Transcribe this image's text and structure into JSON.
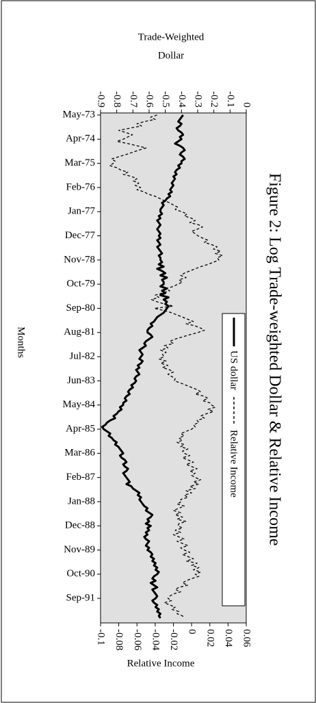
{
  "chart_data": {
    "type": "line",
    "title": "Figure 2: Log Trade-weighted Dollar & Relative Income",
    "x_label": "Months",
    "y_label": [
      "Trade-Weighted",
      "Dollar"
    ],
    "y2_label": "Relative Income",
    "categories": [
      "May-73",
      null,
      null,
      null,
      null,
      null,
      null,
      null,
      null,
      null,
      null,
      "Apr-74",
      null,
      null,
      null,
      null,
      null,
      null,
      null,
      null,
      null,
      null,
      "Mar-75",
      null,
      null,
      null,
      null,
      null,
      null,
      null,
      null,
      null,
      null,
      "Feb-76",
      null,
      null,
      null,
      null,
      null,
      null,
      null,
      null,
      null,
      null,
      "Jan-77",
      null,
      null,
      null,
      null,
      null,
      null,
      null,
      null,
      null,
      null,
      "Dec-77",
      null,
      null,
      null,
      null,
      null,
      null,
      null,
      null,
      null,
      null,
      "Nov-78",
      null,
      null,
      null,
      null,
      null,
      null,
      null,
      null,
      null,
      null,
      "Oct-79",
      null,
      null,
      null,
      null,
      null,
      null,
      null,
      null,
      null,
      null,
      "Sep-80",
      null,
      null,
      null,
      null,
      null,
      null,
      null,
      null,
      null,
      null,
      "Aug-81",
      null,
      null,
      null,
      null,
      null,
      null,
      null,
      null,
      null,
      null,
      "Jul-82",
      null,
      null,
      null,
      null,
      null,
      null,
      null,
      null,
      null,
      null,
      "Jun-83",
      null,
      null,
      null,
      null,
      null,
      null,
      null,
      null,
      null,
      null,
      "May-84",
      null,
      null,
      null,
      null,
      null,
      null,
      null,
      null,
      null,
      null,
      "Apr-85",
      null,
      null,
      null,
      null,
      null,
      null,
      null,
      null,
      null,
      null,
      "Mar-86",
      null,
      null,
      null,
      null,
      null,
      null,
      null,
      null,
      null,
      null,
      "Feb-87",
      null,
      null,
      null,
      null,
      null,
      null,
      null,
      null,
      null,
      null,
      "Jan-88",
      null,
      null,
      null,
      null,
      null,
      null,
      null,
      null,
      null,
      null,
      "Dec-88",
      null,
      null,
      null,
      null,
      null,
      null,
      null,
      null,
      null,
      null,
      "Nov-89",
      null,
      null,
      null,
      null,
      null,
      null,
      null,
      null,
      null,
      null,
      "Oct-90",
      null,
      null,
      null,
      null,
      null,
      null,
      null,
      null,
      null,
      null,
      "Sep-91",
      null,
      null,
      null,
      null,
      null,
      null,
      null,
      null,
      null
    ],
    "series": [
      {
        "name": "US dollar",
        "color": "#000000",
        "dash": "solid",
        "axis": "y",
        "values": [
          -0.39,
          -0.4,
          -0.41,
          -0.42,
          -0.4,
          -0.41,
          -0.43,
          -0.42,
          -0.4,
          -0.39,
          -0.41,
          -0.4,
          -0.42,
          -0.44,
          -0.41,
          -0.39,
          -0.38,
          -0.4,
          -0.41,
          -0.39,
          -0.38,
          -0.4,
          -0.4,
          -0.42,
          -0.41,
          -0.43,
          -0.44,
          -0.43,
          -0.45,
          -0.44,
          -0.45,
          -0.46,
          -0.45,
          -0.46,
          -0.47,
          -0.46,
          -0.48,
          -0.47,
          -0.49,
          -0.5,
          -0.52,
          -0.51,
          -0.52,
          -0.53,
          -0.53,
          -0.52,
          -0.54,
          -0.53,
          -0.55,
          -0.54,
          -0.53,
          -0.54,
          -0.55,
          -0.54,
          -0.53,
          -0.54,
          -0.53,
          -0.55,
          -0.54,
          -0.53,
          -0.55,
          -0.54,
          -0.53,
          -0.52,
          -0.54,
          -0.53,
          -0.53,
          -0.52,
          -0.54,
          -0.51,
          -0.55,
          -0.52,
          -0.5,
          -0.53,
          -0.49,
          -0.52,
          -0.51,
          -0.51,
          -0.53,
          -0.49,
          -0.52,
          -0.5,
          -0.53,
          -0.48,
          -0.51,
          -0.49,
          -0.5,
          -0.48,
          -0.49,
          -0.5,
          -0.51,
          -0.53,
          -0.55,
          -0.56,
          -0.57,
          -0.59,
          -0.58,
          -0.6,
          -0.61,
          -0.61,
          -0.59,
          -0.58,
          -0.6,
          -0.62,
          -0.63,
          -0.62,
          -0.64,
          -0.66,
          -0.65,
          -0.64,
          -0.65,
          -0.66,
          -0.64,
          -0.65,
          -0.67,
          -0.66,
          -0.68,
          -0.67,
          -0.66,
          -0.68,
          -0.69,
          -0.68,
          -0.69,
          -0.71,
          -0.7,
          -0.72,
          -0.73,
          -0.72,
          -0.74,
          -0.75,
          -0.74,
          -0.76,
          -0.76,
          -0.78,
          -0.77,
          -0.79,
          -0.8,
          -0.82,
          -0.81,
          -0.84,
          -0.86,
          -0.87,
          -0.89,
          -0.88,
          -0.86,
          -0.84,
          -0.85,
          -0.83,
          -0.82,
          -0.8,
          -0.81,
          -0.79,
          -0.78,
          -0.77,
          -0.76,
          -0.78,
          -0.77,
          -0.75,
          -0.74,
          -0.76,
          -0.75,
          -0.73,
          -0.74,
          -0.76,
          -0.75,
          -0.74,
          -0.73,
          -0.72,
          -0.74,
          -0.71,
          -0.7,
          -0.68,
          -0.66,
          -0.67,
          -0.65,
          -0.66,
          -0.65,
          -0.64,
          -0.63,
          -0.61,
          -0.62,
          -0.6,
          -0.58,
          -0.59,
          -0.61,
          -0.6,
          -0.62,
          -0.59,
          -0.61,
          -0.6,
          -0.62,
          -0.61,
          -0.63,
          -0.62,
          -0.6,
          -0.61,
          -0.62,
          -0.6,
          -0.61,
          -0.59,
          -0.58,
          -0.59,
          -0.57,
          -0.58,
          -0.56,
          -0.57,
          -0.55,
          -0.56,
          -0.54,
          -0.55,
          -0.57,
          -0.58,
          -0.56,
          -0.59,
          -0.57,
          -0.55,
          -0.58,
          -0.57,
          -0.56,
          -0.55,
          -0.56,
          -0.58,
          -0.57,
          -0.55,
          -0.56,
          -0.54,
          -0.55,
          -0.53,
          -0.54,
          -0.53
        ]
      },
      {
        "name": "Relative Income",
        "color": "#000000",
        "dash": "dashed",
        "axis": "y2",
        "values": [
          -0.038,
          -0.045,
          -0.04,
          -0.052,
          -0.06,
          -0.055,
          -0.068,
          -0.08,
          -0.072,
          -0.065,
          -0.07,
          -0.075,
          -0.082,
          -0.07,
          -0.06,
          -0.05,
          -0.058,
          -0.065,
          -0.072,
          -0.08,
          -0.088,
          -0.084,
          -0.086,
          -0.09,
          -0.082,
          -0.078,
          -0.07,
          -0.075,
          -0.066,
          -0.06,
          -0.064,
          -0.058,
          -0.062,
          -0.056,
          -0.06,
          -0.052,
          -0.048,
          -0.04,
          -0.035,
          -0.03,
          -0.024,
          -0.02,
          -0.015,
          -0.018,
          -0.011,
          -0.005,
          -0.008,
          0.0,
          0.004,
          -0.002,
          0.008,
          0.012,
          0.006,
          0.0,
          0.004,
          0.007,
          0.012,
          0.018,
          0.014,
          0.022,
          0.028,
          0.024,
          0.032,
          0.026,
          0.034,
          0.028,
          0.03,
          0.024,
          0.018,
          0.01,
          0.004,
          -0.002,
          -0.008,
          -0.012,
          -0.006,
          -0.014,
          -0.01,
          -0.015,
          -0.02,
          -0.028,
          -0.024,
          -0.032,
          -0.04,
          -0.036,
          -0.044,
          -0.038,
          -0.03,
          -0.02,
          -0.041,
          -0.03,
          -0.022,
          -0.016,
          -0.01,
          -0.004,
          0.002,
          -0.006,
          0.004,
          0.01,
          0.014,
          0.007,
          -0.002,
          -0.01,
          -0.018,
          -0.024,
          -0.02,
          -0.03,
          -0.026,
          -0.034,
          -0.028,
          -0.032,
          -0.03,
          -0.036,
          -0.028,
          -0.034,
          -0.026,
          -0.032,
          -0.024,
          -0.02,
          -0.026,
          -0.022,
          -0.018,
          -0.019,
          -0.012,
          -0.006,
          0.0,
          0.006,
          0.01,
          0.004,
          0.014,
          0.018,
          0.012,
          0.02,
          0.022,
          0.026,
          0.018,
          0.024,
          0.016,
          0.01,
          0.014,
          0.006,
          0.008,
          0.002,
          0.004,
          0.0,
          -0.006,
          -0.012,
          -0.008,
          -0.014,
          -0.01,
          -0.016,
          -0.008,
          -0.012,
          -0.004,
          -0.01,
          -0.008,
          -0.002,
          -0.01,
          -0.004,
          0.002,
          -0.006,
          0.0,
          0.006,
          -0.002,
          0.004,
          0.0,
          0.004,
          0.01,
          0.002,
          0.008,
          -0.002,
          0.004,
          -0.006,
          0.0,
          -0.008,
          -0.004,
          -0.012,
          -0.011,
          -0.016,
          -0.008,
          -0.014,
          -0.02,
          -0.012,
          -0.018,
          -0.01,
          -0.016,
          -0.006,
          -0.014,
          -0.015,
          -0.01,
          -0.018,
          -0.012,
          -0.02,
          -0.014,
          -0.008,
          -0.016,
          -0.01,
          -0.004,
          -0.012,
          -0.008,
          -0.002,
          -0.01,
          -0.004,
          0.002,
          -0.006,
          0.006,
          0.0,
          0.008,
          0.002,
          0.01,
          0.004,
          0.008,
          0.0,
          -0.006,
          -0.01,
          -0.004,
          -0.014,
          -0.018,
          -0.012,
          -0.02,
          -0.024,
          -0.026,
          -0.022,
          -0.03,
          -0.024,
          -0.018,
          -0.022,
          -0.014,
          -0.016,
          -0.01,
          -0.008
        ]
      }
    ],
    "ylim": [
      -0.9,
      0
    ],
    "yticks": [
      -0.9,
      -0.8,
      -0.7,
      -0.6,
      -0.5,
      -0.4,
      -0.3,
      -0.2,
      -0.1,
      0
    ],
    "y2lim": [
      -0.1,
      0.06
    ],
    "y2ticks": [
      -0.1,
      -0.08,
      -0.06,
      -0.04,
      -0.02,
      0,
      0.02,
      0.04,
      0.06
    ],
    "plot_background": "#e0e0e0",
    "grid": false
  }
}
